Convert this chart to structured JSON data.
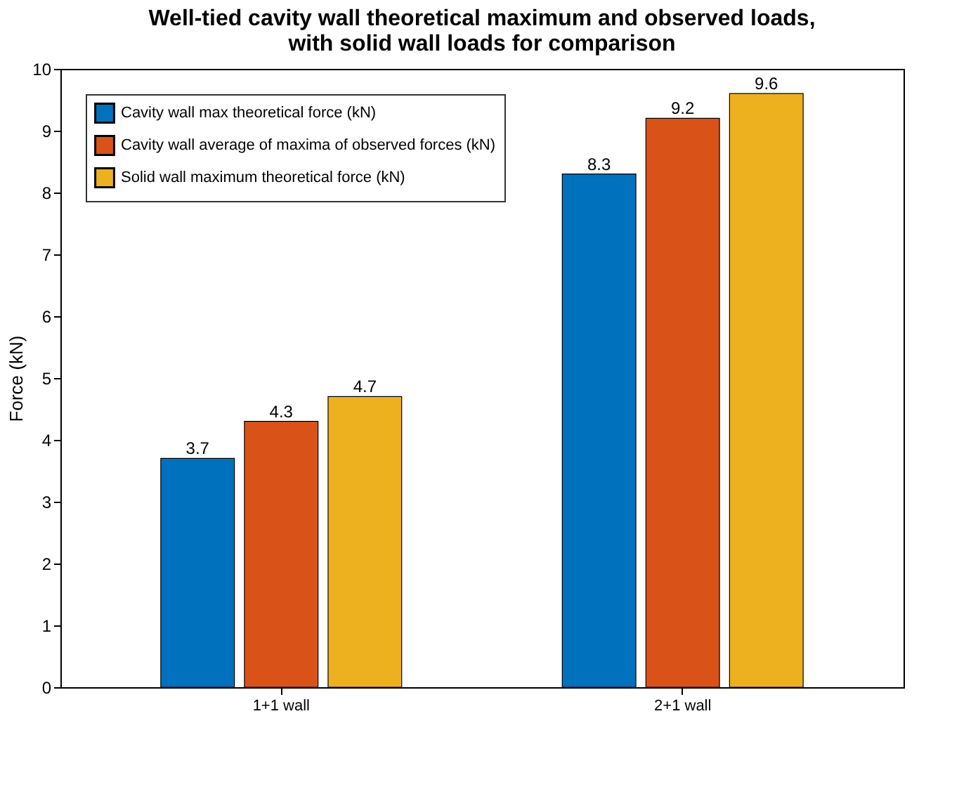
{
  "chart_data": {
    "type": "bar",
    "title": "Well-tied cavity wall theoretical maximum and observed loads, with solid wall loads for comparison",
    "ylabel": "Force (kN)",
    "categories": [
      "1+1 wall",
      "2+1 wall"
    ],
    "series": [
      {
        "name": "Cavity wall max theoretical force (kN)",
        "color": "#0072bd",
        "values": [
          3.7,
          8.3
        ]
      },
      {
        "name": "Cavity wall average of maxima of observed forces (kN)",
        "color": "#d95319",
        "values": [
          4.3,
          9.2
        ]
      },
      {
        "name": "Solid wall maximum theoretical force (kN)",
        "color": "#edb120",
        "values": [
          4.7,
          9.6
        ]
      }
    ],
    "ylim": [
      0,
      10
    ],
    "yticks": [
      0,
      1,
      2,
      3,
      4,
      5,
      6,
      7,
      8,
      9,
      10
    ],
    "data_labels": true,
    "legend": "top left",
    "grid": false
  }
}
